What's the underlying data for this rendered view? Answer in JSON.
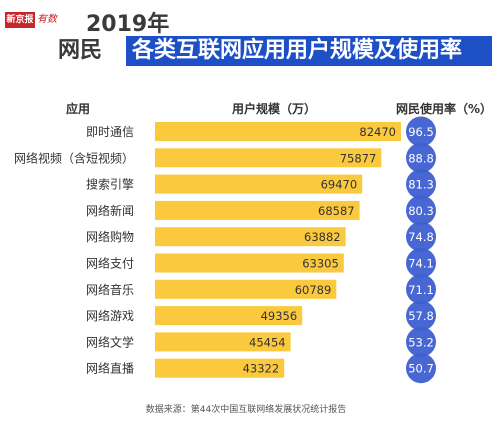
{
  "header": {
    "logo_red": "新京报",
    "logo_script": "有数",
    "year": "2019年",
    "title_a": "网民",
    "title_b": "各类互联网应用用户规模及使用率"
  },
  "columns": {
    "app": "应用",
    "users": "用户规模（万）",
    "rate": "网民使用率（%）"
  },
  "source": "数据来源：第44次中国互联网络发展状况统计报告",
  "colors": {
    "bar": "#fbc93e",
    "circle": "#3e5fd1",
    "title_bg": "#1d4fc6",
    "logo_red": "#c9262a"
  },
  "chart_data": {
    "type": "bar",
    "orientation": "horizontal",
    "categories": [
      "即时通信",
      "网络视频（含短视频）",
      "搜索引擎",
      "网络新闻",
      "网络购物",
      "网络支付",
      "网络音乐",
      "网络游戏",
      "网络文学",
      "网络直播"
    ],
    "series": [
      {
        "name": "用户规模（万）",
        "values": [
          82470,
          75877,
          69470,
          68587,
          63882,
          63305,
          60789,
          49356,
          45454,
          43322
        ]
      },
      {
        "name": "网民使用率（%）",
        "values": [
          96.5,
          88.8,
          81.3,
          80.3,
          74.8,
          74.1,
          71.1,
          57.8,
          53.2,
          50.7
        ]
      }
    ],
    "xlim": [
      0,
      82470
    ]
  }
}
